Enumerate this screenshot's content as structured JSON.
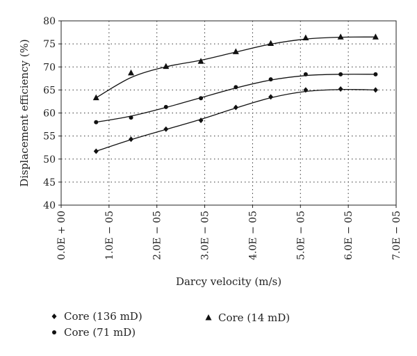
{
  "chart_data": {
    "type": "scatter",
    "title": "",
    "xlabel": "Darcy velocity (m/s)",
    "ylabel": "Displacement efficiency (%)",
    "xlim": [
      0.0,
      7e-05
    ],
    "ylim": [
      40,
      80
    ],
    "x_ticks": [
      0.0,
      1e-05,
      2e-05,
      3e-05,
      4e-05,
      5e-05,
      6e-05,
      7e-05
    ],
    "x_tick_labels": [
      "0.0E + 00",
      "1.0E − 05",
      "2.0E − 05",
      "3.0E − 05",
      "4.0E − 05",
      "5.0E − 05",
      "6.0E − 05",
      "7.0E − 05"
    ],
    "y_ticks": [
      40,
      45,
      50,
      55,
      60,
      65,
      70,
      75,
      80
    ],
    "y_tick_labels": [
      "40",
      "45",
      "50",
      "55",
      "60",
      "65",
      "70",
      "75",
      "80"
    ],
    "grid": true,
    "legend_position": "bottom",
    "series": [
      {
        "name": "Core (136 mD)",
        "marker": "diamond",
        "color": "#111111",
        "x": [
          7.3e-06,
          1.46e-05,
          2.19e-05,
          2.92e-05,
          3.65e-05,
          4.38e-05,
          5.11e-05,
          5.84e-05,
          6.57e-05
        ],
        "y": [
          51.7,
          54.3,
          56.5,
          58.4,
          61.2,
          63.5,
          65.0,
          65.2,
          65.0
        ]
      },
      {
        "name": "Core (71 mD)",
        "marker": "circle",
        "color": "#111111",
        "x": [
          7.3e-06,
          1.46e-05,
          2.19e-05,
          2.92e-05,
          3.65e-05,
          4.38e-05,
          5.11e-05,
          5.84e-05,
          6.57e-05
        ],
        "y": [
          58.0,
          59.0,
          61.3,
          63.2,
          65.6,
          67.3,
          68.4,
          68.4,
          68.4
        ]
      },
      {
        "name": "Core (14 mD)",
        "marker": "triangle",
        "color": "#111111",
        "x": [
          7.3e-06,
          1.46e-05,
          2.19e-05,
          2.92e-05,
          3.65e-05,
          4.38e-05,
          5.11e-05,
          5.84e-05,
          6.57e-05
        ],
        "y": [
          63.3,
          68.7,
          70.1,
          71.2,
          73.3,
          75.1,
          76.3,
          76.5,
          76.5
        ]
      }
    ]
  }
}
